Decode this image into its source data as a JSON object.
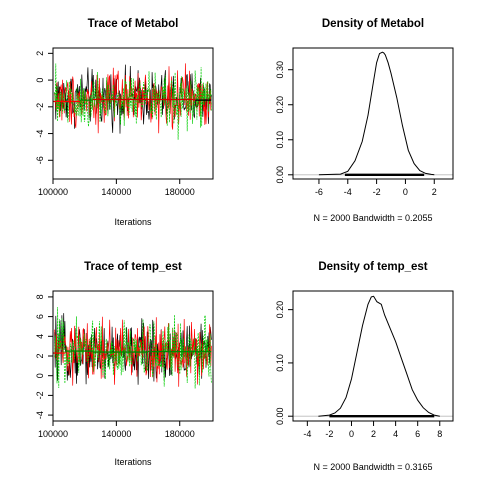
{
  "chart_data": [
    {
      "type": "line",
      "title": "Trace of Metabol",
      "xlabel": "Iterations",
      "ylabel": "",
      "xlim": [
        100000,
        201000
      ],
      "ylim": [
        -7.4,
        2.4
      ],
      "x_ticks": [
        "100000",
        "140000",
        "180000"
      ],
      "y_ticks": [
        "-6",
        "-4",
        "-2",
        "0",
        "2"
      ],
      "series": [
        {
          "color": "#000000",
          "center": -1.3,
          "spread": 1.0
        },
        {
          "color": "#ff0000",
          "center": -1.4,
          "spread": 1.0
        },
        {
          "color": "#00cc00",
          "center": -1.5,
          "spread": 1.1
        }
      ],
      "running_mean": {
        "segments": [
          {
            "from": 100000,
            "to": 117000,
            "value": -1.6,
            "color": "#ff0000"
          },
          {
            "from": 117000,
            "to": 125000,
            "value": -1.5,
            "color": "#008800"
          },
          {
            "from": 125000,
            "to": 190000,
            "value": -1.45,
            "color": "#cc0000"
          },
          {
            "from": 190000,
            "to": 200000,
            "value": -1.5,
            "color": "#000000"
          }
        ]
      }
    },
    {
      "type": "area",
      "title": "Density of Metabol",
      "xlabel": "N = 2000   Bandwidth = 0.2055",
      "ylabel": "",
      "xlim": [
        -7.8,
        3.3
      ],
      "ylim": [
        -0.012,
        0.362
      ],
      "x_ticks": [
        "-6",
        "-4",
        "-2",
        "0",
        "2"
      ],
      "y_ticks": [
        "0.00",
        "0.10",
        "0.20",
        "0.30"
      ],
      "x": [
        -6.0,
        -4.5,
        -4.0,
        -3.5,
        -3.0,
        -2.6,
        -2.2,
        -2.0,
        -1.8,
        -1.6,
        -1.5,
        -1.4,
        -1.2,
        -1.0,
        -0.6,
        -0.2,
        0.2,
        0.6,
        1.0,
        1.4,
        1.8,
        2.0
      ],
      "y": [
        0.0,
        0.002,
        0.01,
        0.04,
        0.095,
        0.17,
        0.27,
        0.32,
        0.346,
        0.35,
        0.348,
        0.342,
        0.32,
        0.29,
        0.22,
        0.14,
        0.07,
        0.032,
        0.012,
        0.004,
        0.001,
        0.0
      ],
      "rug": {
        "from": -4.2,
        "to": 1.3
      }
    },
    {
      "type": "line",
      "title": "Trace of temp_est",
      "xlabel": "Iterations",
      "ylabel": "",
      "xlim": [
        100000,
        201000
      ],
      "ylim": [
        -4.6,
        8.6
      ],
      "x_ticks": [
        "100000",
        "140000",
        "180000"
      ],
      "y_ticks": [
        "-4",
        "-2",
        "0",
        "2",
        "4",
        "6",
        "8"
      ],
      "series": [
        {
          "color": "#000000",
          "center": 2.4,
          "spread": 1.5
        },
        {
          "color": "#ff0000",
          "center": 2.5,
          "spread": 1.5
        },
        {
          "color": "#00cc00",
          "center": 2.6,
          "spread": 1.6
        }
      ],
      "running_mean": {
        "segments": [
          {
            "from": 100000,
            "to": 108000,
            "value": 2.3,
            "color": "#ff0000"
          },
          {
            "from": 108000,
            "to": 125000,
            "value": 2.5,
            "color": "#008800"
          },
          {
            "from": 125000,
            "to": 160000,
            "value": 2.4,
            "color": "#008800"
          },
          {
            "from": 160000,
            "to": 200000,
            "value": 2.45,
            "color": "#008800"
          }
        ]
      }
    },
    {
      "type": "area",
      "title": "Density of temp_est",
      "xlabel": "N = 2000   Bandwidth = 0.3165",
      "ylabel": "",
      "xlim": [
        -5.3,
        9.2
      ],
      "ylim": [
        -0.009,
        0.235
      ],
      "x_ticks": [
        "-4",
        "-2",
        "0",
        "2",
        "4",
        "6",
        "8"
      ],
      "y_ticks": [
        "0.00",
        "0.10",
        "0.20"
      ],
      "x": [
        -3.0,
        -2.0,
        -1.5,
        -1.0,
        -0.5,
        0.0,
        0.5,
        1.0,
        1.5,
        1.8,
        2.0,
        2.3,
        2.7,
        3.0,
        3.5,
        4.0,
        4.5,
        5.0,
        5.5,
        6.0,
        6.5,
        7.0,
        7.5,
        8.0
      ],
      "y": [
        0.0,
        0.002,
        0.006,
        0.015,
        0.035,
        0.07,
        0.12,
        0.17,
        0.21,
        0.224,
        0.225,
        0.215,
        0.21,
        0.19,
        0.165,
        0.14,
        0.11,
        0.08,
        0.05,
        0.03,
        0.016,
        0.007,
        0.002,
        0.0
      ],
      "rug": {
        "from": -2.0,
        "to": 7.5
      }
    }
  ]
}
